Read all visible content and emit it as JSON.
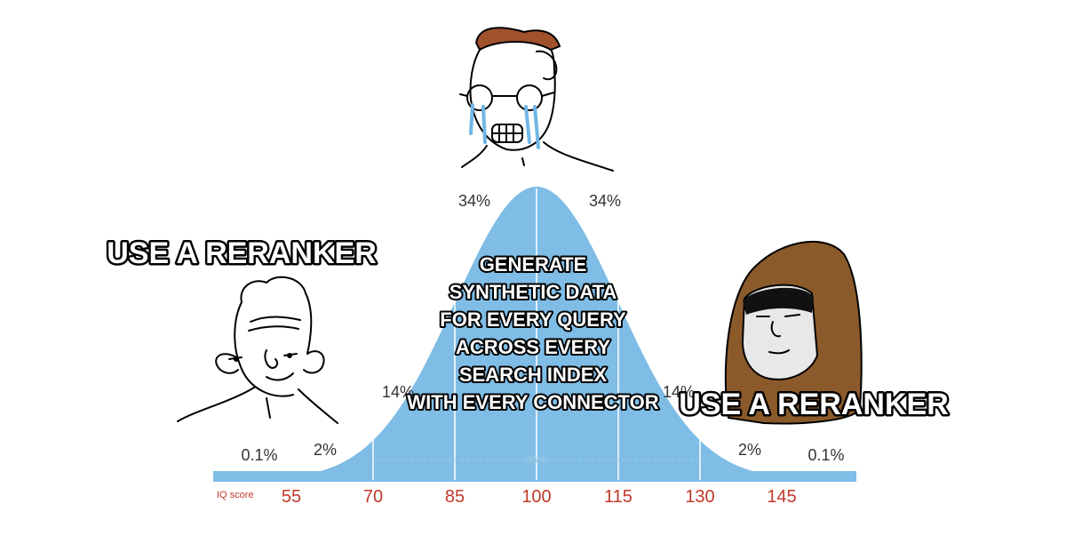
{
  "colors": {
    "curve_fill": "#7fbde6",
    "iq_text": "#c0392b",
    "line": "#000000",
    "hair_top": "#a0522d",
    "hood": "#8b5a2b",
    "tears": "#6fb7e6"
  },
  "icons": [
    "soyjak-crying-face",
    "wojak-simple-face",
    "hooded-face"
  ],
  "distribution": {
    "percent_labels": {
      "left_tail": "0.1%",
      "left_2": "2%",
      "left_14": "14%",
      "left_34": "34%",
      "right_34": "34%",
      "right_14": "14%",
      "right_2": "2%",
      "right_tail": "0.1%"
    },
    "center_mark": "95%",
    "iq_axis": {
      "label": "IQ score",
      "ticks": [
        "55",
        "70",
        "85",
        "100",
        "115",
        "130",
        "145"
      ]
    }
  },
  "captions": {
    "left": "USE A RERANKER",
    "right": "USE A RERANKER",
    "center": [
      "GENERATE",
      "SYNTHETIC DATA",
      "FOR EVERY QUERY",
      "ACROSS EVERY",
      "SEARCH INDEX",
      "WITH EVERY CONNECTOR"
    ]
  }
}
